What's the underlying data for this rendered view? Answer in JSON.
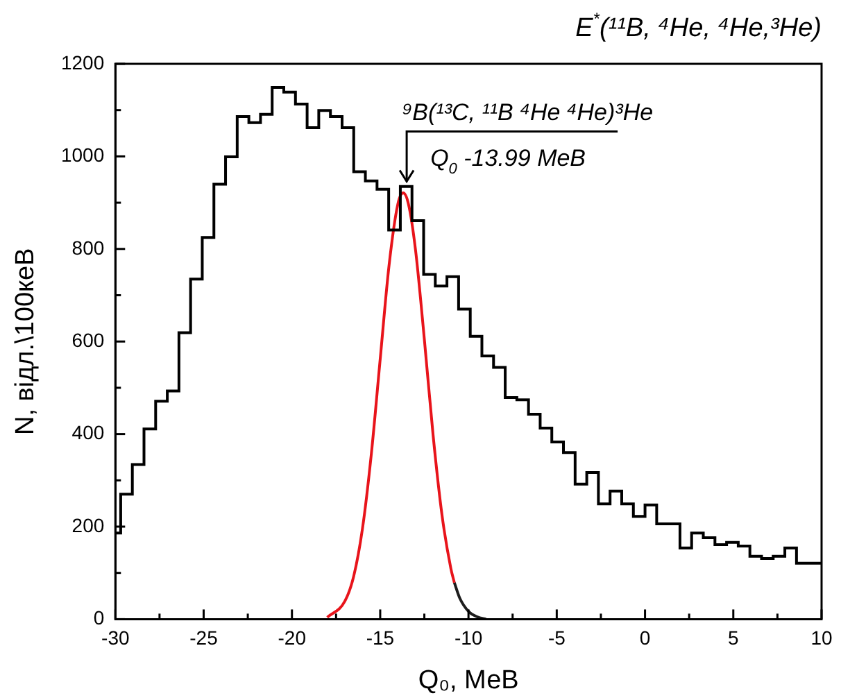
{
  "chart_data": {
    "type": "histogram",
    "title": "E$^{*}$(¹¹B, ⁴He, ⁴He,³He)",
    "xlabel": "Q₀, МеВ",
    "ylabel": "N, відл.\\100кеВ",
    "bins": [
      -30,
      -29.7,
      -29.04,
      -28.38,
      -27.72,
      -27.06,
      -26.4,
      -25.74,
      -25.08,
      -24.42,
      -23.76,
      -23.1,
      -22.44,
      -21.78,
      -21.12,
      -20.46,
      -19.8,
      -19.14,
      -18.48,
      -17.82,
      -17.16,
      -16.5,
      -15.84,
      -15.18,
      -14.52,
      -13.86,
      -13.2,
      -12.54,
      -11.88,
      -11.22,
      -10.56,
      -9.9,
      -9.24,
      -8.58,
      -7.92,
      -7.26,
      -6.6,
      -5.94,
      -5.28,
      -4.62,
      -3.96,
      -3.3,
      -2.64,
      -1.98,
      -1.32,
      -0.66,
      0,
      0.66,
      1.32,
      1.98,
      2.64,
      3.3,
      3.96,
      4.62,
      5.28,
      5.94,
      6.6,
      7.26,
      7.92,
      8.58,
      9.24,
      9.9,
      10
    ],
    "values": [
      186,
      270,
      334,
      411,
      471,
      493,
      619,
      735,
      825,
      940,
      999,
      1086,
      1073,
      1091,
      1149,
      1139,
      1113,
      1062,
      1099,
      1086,
      1062,
      967,
      947,
      929,
      841,
      935,
      861,
      745,
      720,
      740,
      670,
      611,
      569,
      544,
      479,
      474,
      443,
      413,
      383,
      360,
      292,
      317,
      249,
      277,
      249,
      222,
      247,
      206,
      206,
      154,
      186,
      176,
      161,
      166,
      158,
      136,
      131,
      136,
      154,
      121,
      121,
      121
    ],
    "color": "#000000",
    "series": [
      {
        "type": "line",
        "color": "#e8141b",
        "x": [
          -18,
          -17,
          -16.5,
          -16,
          -15.5,
          -15,
          -14.5,
          -14,
          -13.7,
          -13.4,
          -13,
          -12.5,
          -12,
          -11.5,
          -11,
          -10.8
        ],
        "values": [
          4,
          39,
          93,
          197,
          358,
          562,
          764,
          897,
          921,
          897,
          798,
          605,
          396,
          225,
          110,
          79
        ]
      },
      {
        "type": "line",
        "color": "#1e1e1e",
        "x": [
          -10.8,
          -10.5,
          -10,
          -9.5,
          -9
        ],
        "values": [
          79,
          46,
          17,
          5,
          0
        ]
      }
    ],
    "annotations": [
      {
        "text": "⁹B(¹³C, ¹¹B ⁴He ⁴He)³He",
        "x": -13.5,
        "y": 940
      },
      {
        "text": "Q$_{0}$ -13.99 MeB",
        "x": -13.5,
        "y": 940
      }
    ],
    "xlim": [
      -30,
      10
    ],
    "xticks": [
      -30,
      {
        "value": -27.5,
        "label": null
      },
      -25,
      {
        "value": -22.5,
        "label": null
      },
      -20,
      {
        "value": -17.5,
        "label": null
      },
      -15,
      {
        "value": -12.5,
        "label": null
      },
      -10,
      {
        "value": -7.5,
        "label": null
      },
      -5,
      {
        "value": -2.5,
        "label": null
      },
      0,
      {
        "value": 2.5,
        "label": null
      },
      5,
      {
        "value": 7.5,
        "label": null
      },
      10
    ],
    "ylim": [
      0,
      1200
    ],
    "yticks": [
      0,
      {
        "value": 100,
        "label": null
      },
      200,
      {
        "value": 300,
        "label": null
      },
      400,
      {
        "value": 500,
        "label": null
      },
      600,
      {
        "value": 700,
        "label": null
      },
      800,
      {
        "value": 900,
        "label": null
      },
      1000,
      {
        "value": 1100,
        "label": null
      },
      1200
    ],
    "grid": false,
    "legend": false
  }
}
